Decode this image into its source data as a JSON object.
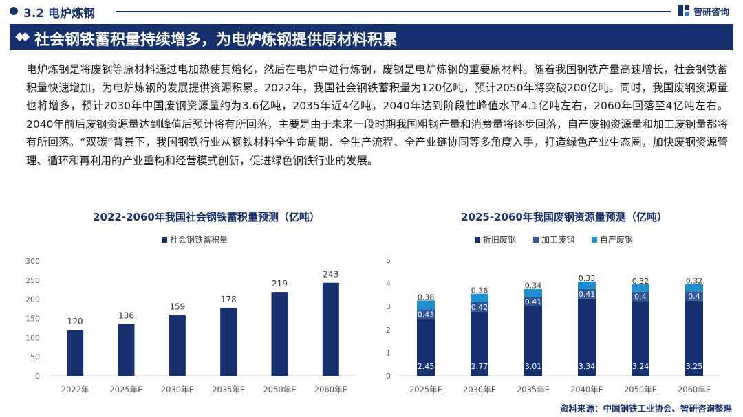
{
  "header": {
    "section_label": "3.2 电炉炼钢",
    "brand": "智研咨询",
    "banner_title": "社会钢铁蓄积量持续增多，为电炉炼钢提供原材料积累",
    "banner_icon": "double-diamond-icon"
  },
  "colors": {
    "navy": "#17306e",
    "mid_blue": "#2f5597",
    "light_blue": "#1f8fd0"
  },
  "paragraph": {
    "text": "电炉炼钢是将废钢等原材料通过电加热使其熔化，然后在电炉中进行炼钢，废钢是电炉炼钢的重要原材料。随着我国钢铁产量高速增长，社会钢铁蓄积量快速增加，为电炉炼钢的发展提供资源积累。2022年，我国社会钢铁蓄积量为120亿吨，预计2050年将突破200亿吨。同时，我国废钢资源量也将增多，预计2030年中国废钢资源量约为3.6亿吨，2035年近4亿吨，2040年达到阶段性峰值水平4.1亿吨左右，2060年回落至4亿吨左右。2040年前后废钢资源量达到峰值后预计将有所回落，主要是由于未来一段时期我国粗钢产量和消费量将逐步回落，自产废钢资源量和加工废钢量都将有所回落。“双碳”背景下，我国钢铁行业从钢铁材料全生命周期、全生产流程、全产业链协同等多角度入手，打造绿色产业生态圈，加快废钢资源管理、循环和再利用的产业重构和经营模式创新，促进绿色钢铁行业的发展。"
  },
  "chart_data": [
    {
      "type": "bar",
      "title": "2022-2060年我国社会钢铁蓄积量预测（亿吨）",
      "categories": [
        "2022年",
        "2025年E",
        "2030年E",
        "2035年E",
        "2050年E",
        "2060年E"
      ],
      "series": [
        {
          "name": "社会钢铁蓄积量",
          "values": [
            120,
            136,
            159,
            178,
            219,
            243
          ]
        }
      ],
      "ylim": [
        0,
        300
      ],
      "yticks": [
        0,
        50,
        100,
        150,
        200,
        250,
        300
      ],
      "grid": false,
      "legend": "top"
    },
    {
      "type": "bar",
      "stacked": true,
      "title": "2025-2060年我国废钢资源量预测（亿吨）",
      "categories": [
        "2025年E",
        "2030年E",
        "2035年E",
        "2040年E",
        "2050年E",
        "2060年E"
      ],
      "series": [
        {
          "name": "折旧废钢",
          "values": [
            2.45,
            2.77,
            3.01,
            3.34,
            3.24,
            3.25
          ]
        },
        {
          "name": "加工废钢",
          "values": [
            0.43,
            0.42,
            0.41,
            0.41,
            0.4,
            0.4
          ]
        },
        {
          "name": "自产废钢",
          "values": [
            0.38,
            0.36,
            0.34,
            0.33,
            0.32,
            0.32
          ]
        }
      ],
      "ylim": [
        0,
        5
      ],
      "yticks": [
        0,
        1,
        2,
        3,
        4,
        5
      ],
      "grid": false,
      "legend": "top"
    }
  ],
  "source": "资料来源：中国钢铁工业协会、智研咨询整理"
}
